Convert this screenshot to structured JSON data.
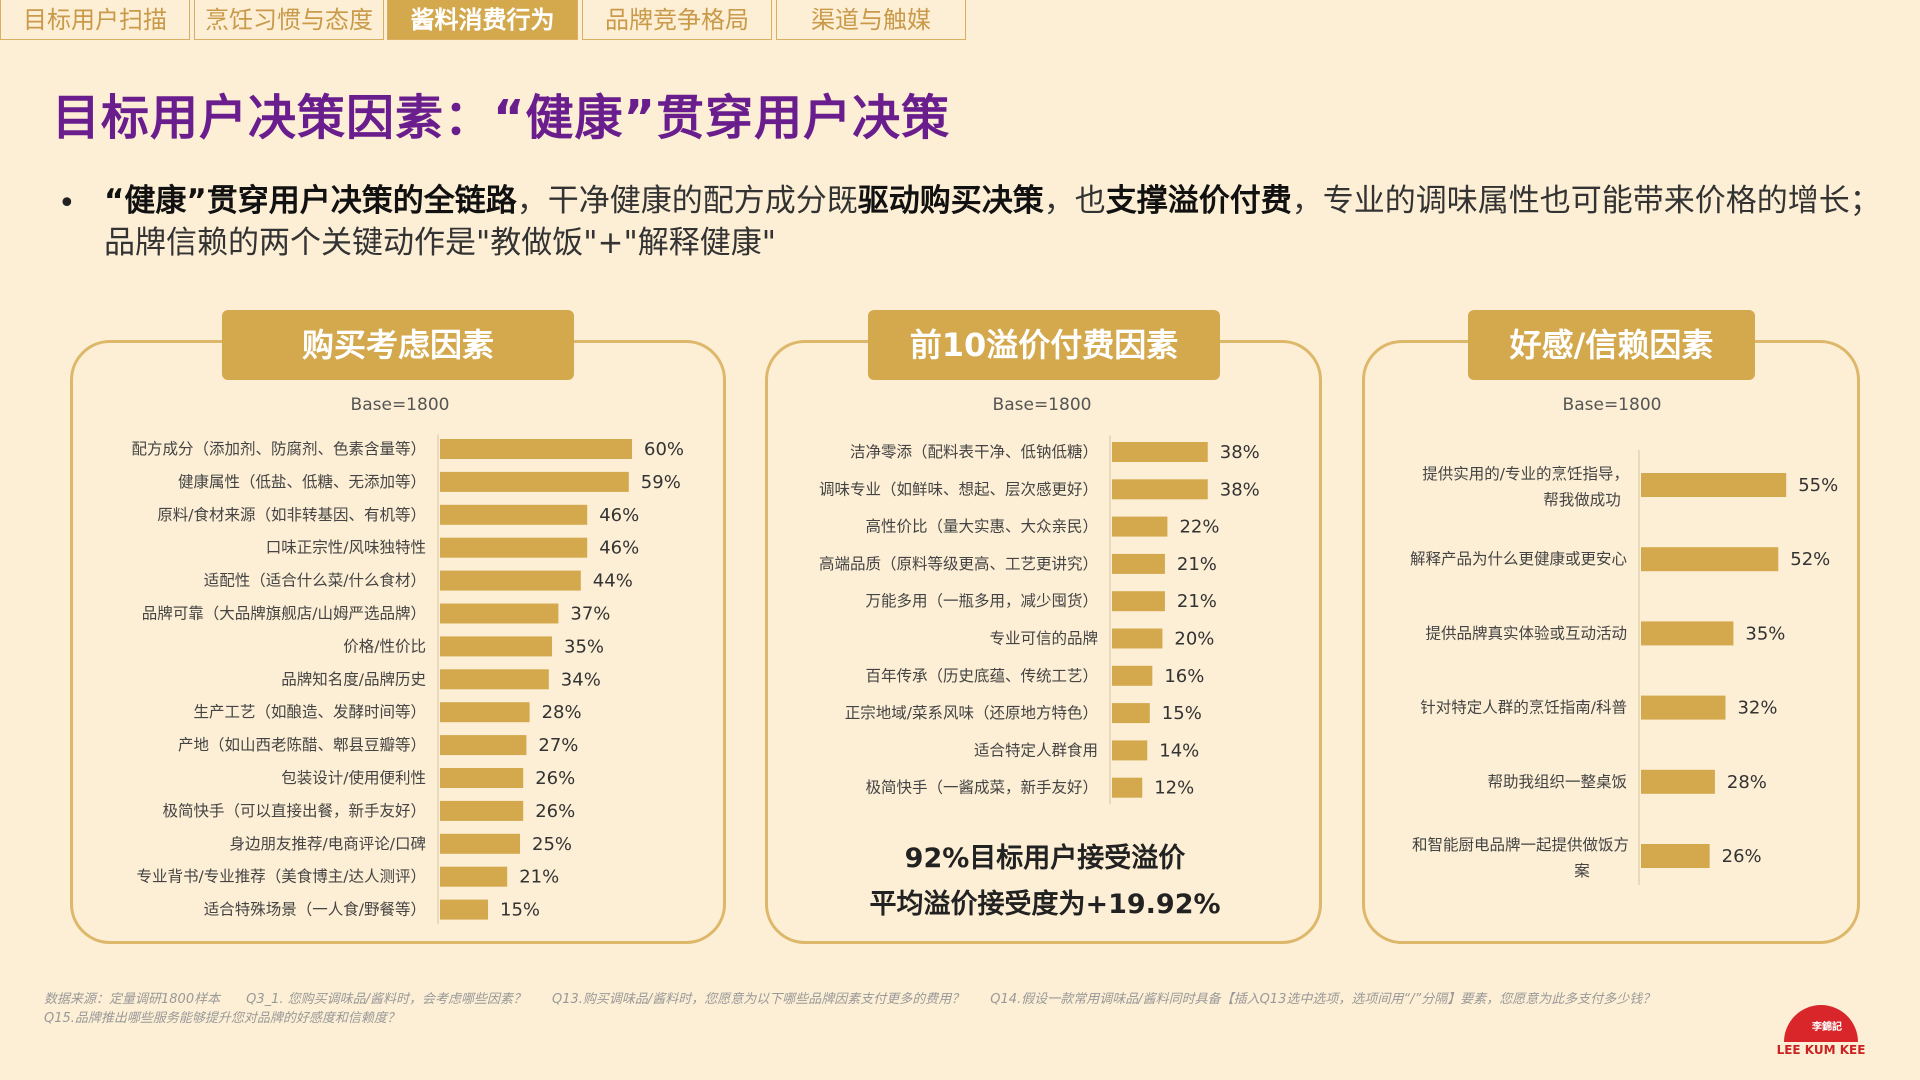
{
  "nav": {
    "tabs": [
      {
        "label": "目标用户扫描",
        "active": false
      },
      {
        "label": "烹饪习惯与态度",
        "active": false
      },
      {
        "label": "酱料消费行为",
        "active": true
      },
      {
        "label": "品牌竞争格局",
        "active": false
      },
      {
        "label": "渠道与触媒",
        "active": false
      }
    ]
  },
  "title": "目标用户决策因素：“健康”贯穿用户决策",
  "summary": {
    "bullet": "•",
    "part1": "“健康”贯穿用户决策的全链路",
    "part2": "，干净健康的配方成分既",
    "part3": "驱动购买决策",
    "part4": "，也",
    "part5": "支撑溢价付费",
    "part6": "，专业的调味属性也可能带来价格的增长；品牌信赖的两个关键动作是\"教做饭\"+\"解释健康\""
  },
  "panels": {
    "purchase": {
      "header": "购买考虑因素",
      "base": "Base=1800"
    },
    "premium": {
      "header": "前10溢价付费因素",
      "base": "Base=1800",
      "callout1": "92%目标用户接受溢价",
      "callout2": "平均溢价接受度为+19.92%"
    },
    "trust": {
      "header": "好感/信赖因素",
      "base": "Base=1800"
    }
  },
  "chart_data": [
    {
      "type": "bar",
      "title": "购买考虑因素",
      "categories": [
        "配方成分（添加剂、防腐剂、色素含量等）",
        "健康属性（低盐、低糖、无添加等）",
        "原料/食材来源（如非转基因、有机等）",
        "口味正宗性/风味独特性",
        "适配性（适合什么菜/什么食材）",
        "品牌可靠（大品牌旗舰店/山姆严选品牌）",
        "价格/性价比",
        "品牌知名度/品牌历史",
        "生产工艺（如酿造、发酵时间等）",
        "产地（如山西老陈醋、郫县豆瓣等）",
        "包装设计/使用便利性",
        "极简快手（可以直接出餐，新手友好）",
        "身边朋友推荐/电商评论/口碑",
        "专业背书/专业推荐（美食博主/达人测评）",
        "适合特殊场景（一人食/野餐等）"
      ],
      "values": [
        60,
        59,
        46,
        46,
        44,
        37,
        35,
        34,
        28,
        27,
        26,
        26,
        25,
        21,
        15
      ],
      "labels": [
        "60%",
        "59%",
        "46%",
        "46%",
        "44%",
        "37%",
        "35%",
        "34%",
        "28%",
        "27%",
        "26%",
        "26%",
        "25%",
        "21%",
        "15%"
      ],
      "color": "#d4a94e"
    },
    {
      "type": "bar",
      "title": "前10溢价付费因素",
      "categories": [
        "洁净零添（配料表干净、低钠低糖）",
        "调味专业（如鲜味、想起、层次感更好）",
        "高性价比（量大实惠、大众亲民）",
        "高端品质（原料等级更高、工艺更讲究）",
        "万能多用（一瓶多用，减少囤货）",
        "专业可信的品牌",
        "百年传承（历史底蕴、传统工艺）",
        "正宗地域/菜系风味（还原地方特色）",
        "适合特定人群食用",
        "极简快手（一酱成菜，新手友好）"
      ],
      "values": [
        38,
        38,
        22,
        21,
        21,
        20,
        16,
        15,
        14,
        12
      ],
      "labels": [
        "38%",
        "38%",
        "22%",
        "21%",
        "21%",
        "20%",
        "16%",
        "15%",
        "14%",
        "12%"
      ],
      "color": "#d4a94e"
    },
    {
      "type": "bar",
      "title": "好感/信赖因素",
      "categories": [
        "提供实用的/专业的烹饪指导，帮我做成功",
        "解释产品为什么更健康或更安心",
        "提供品牌真实体验或互动活动",
        "针对特定人群的烹饪指南/科普",
        "帮助我组织一整桌饭",
        "和智能厨电品牌一起提供做饭方案"
      ],
      "values": [
        55,
        52,
        35,
        32,
        28,
        26
      ],
      "labels": [
        "55%",
        "52%",
        "35%",
        "32%",
        "28%",
        "26%"
      ],
      "color": "#d4a94e"
    }
  ],
  "footnote": "数据来源：定量调研1800样本　　Q3_1. 您购买调味品/酱料时，会考虑哪些因素？　　Q13.购买调味品/酱料时，您愿意为以下哪些品牌因素支付更多的费用？　　Q14.假设一款常用调味品/酱料同时具备【插入Q13选中选项，选项间用“/”分隔】要素，您愿意为此多支付多少钱？　　Q15.品牌推出哪些服务能够提升您对品牌的好感度和信赖度？",
  "logo": {
    "text": "LEE KUM KEE",
    "mark": "李錦記"
  }
}
